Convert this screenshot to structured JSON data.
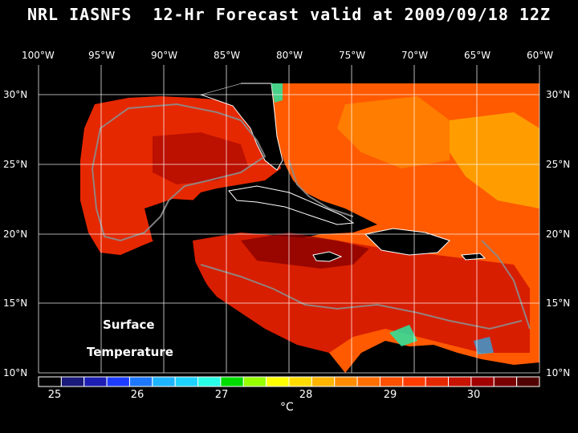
{
  "title": "NRL IASNFS  12-Hr Forecast valid at 2009/09/18 12Z",
  "longitude_labels": [
    "100°W",
    "95°W",
    "90°W",
    "85°W",
    "80°W",
    "75°W",
    "70°W",
    "65°W",
    "60°W"
  ],
  "latitude_labels": [
    "30°N",
    "25°N",
    "20°N",
    "15°N",
    "10°N"
  ],
  "map_text": {
    "line1": "Surface",
    "line2": "Temperature"
  },
  "colorbar": {
    "tick_labels": [
      "25",
      "26",
      "27",
      "28",
      "29",
      "30"
    ],
    "unit": "°C",
    "colors": [
      "#000000",
      "#1a1a7a",
      "#1e1eb4",
      "#1e3cff",
      "#1e78ff",
      "#1eb4ff",
      "#1ed2ff",
      "#28ffe6",
      "#00dc00",
      "#96ff00",
      "#ffff00",
      "#ffdc00",
      "#ffb400",
      "#ff8c00",
      "#ff6e00",
      "#ff5000",
      "#ff3c00",
      "#e62800",
      "#c81400",
      "#a00000",
      "#7a0000",
      "#500000"
    ]
  },
  "colors": {
    "background": "#000000",
    "text": "#ffffff",
    "grid": "#ffffff",
    "isobath": "#8c8c8c",
    "gulf_sst": "#e62800",
    "caribbean_sst": "#c81400",
    "atlantic_sst": "#ff5000",
    "warm_core": "#7a0000",
    "cool_patch": "#ffb400"
  }
}
